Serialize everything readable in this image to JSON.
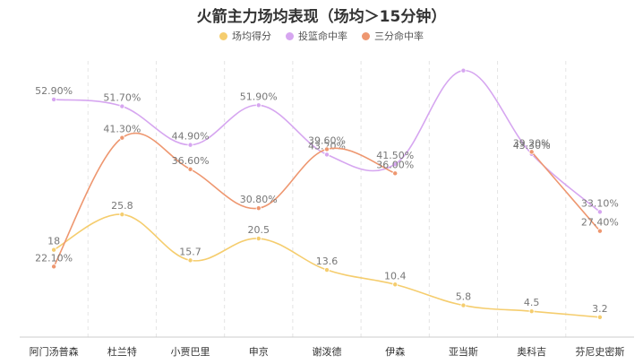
{
  "chart_data": {
    "type": "line",
    "title": "火箭主力场均表现（场均＞15分钟）",
    "categories": [
      "阿门汤普森",
      "杜兰特",
      "小贾巴里",
      "申京",
      "谢泼德",
      "伊森",
      "亚当斯",
      "奥科吉",
      "芬尼史密斯"
    ],
    "series": [
      {
        "name": "场均得分",
        "color": "#f5cd6e",
        "values": [
          18,
          25.8,
          15.7,
          20.5,
          13.6,
          10.4,
          5.8,
          4.5,
          3.2
        ],
        "labels": [
          "18",
          "25.8",
          "15.7",
          "20.5",
          "13.6",
          "10.4",
          "5.8",
          "4.5",
          "3.2"
        ]
      },
      {
        "name": "投篮命中率",
        "color": "#d6a6f0",
        "values": [
          52.9,
          51.7,
          44.9,
          51.9,
          43.2,
          41.5,
          58.0,
          43.3,
          33.1
        ],
        "labels": [
          "52.90%",
          "51.70%",
          "44.90%",
          "51.90%",
          "43.20%",
          "41.50%",
          "",
          "43.30%",
          "33.10%"
        ]
      },
      {
        "name": "三分命中率",
        "color": "#ee9770",
        "values": [
          22.1,
          41.3,
          36.6,
          30.8,
          39.6,
          36.0,
          null,
          39.2,
          27.4
        ],
        "labels": [
          "22.10%",
          "41.30%",
          "36.60%",
          "30.80%",
          "39.60%",
          "36.00%",
          "",
          "39.20%",
          "27.40%"
        ]
      }
    ],
    "legend_position": "top-center",
    "grid": "vertical-dashed"
  }
}
